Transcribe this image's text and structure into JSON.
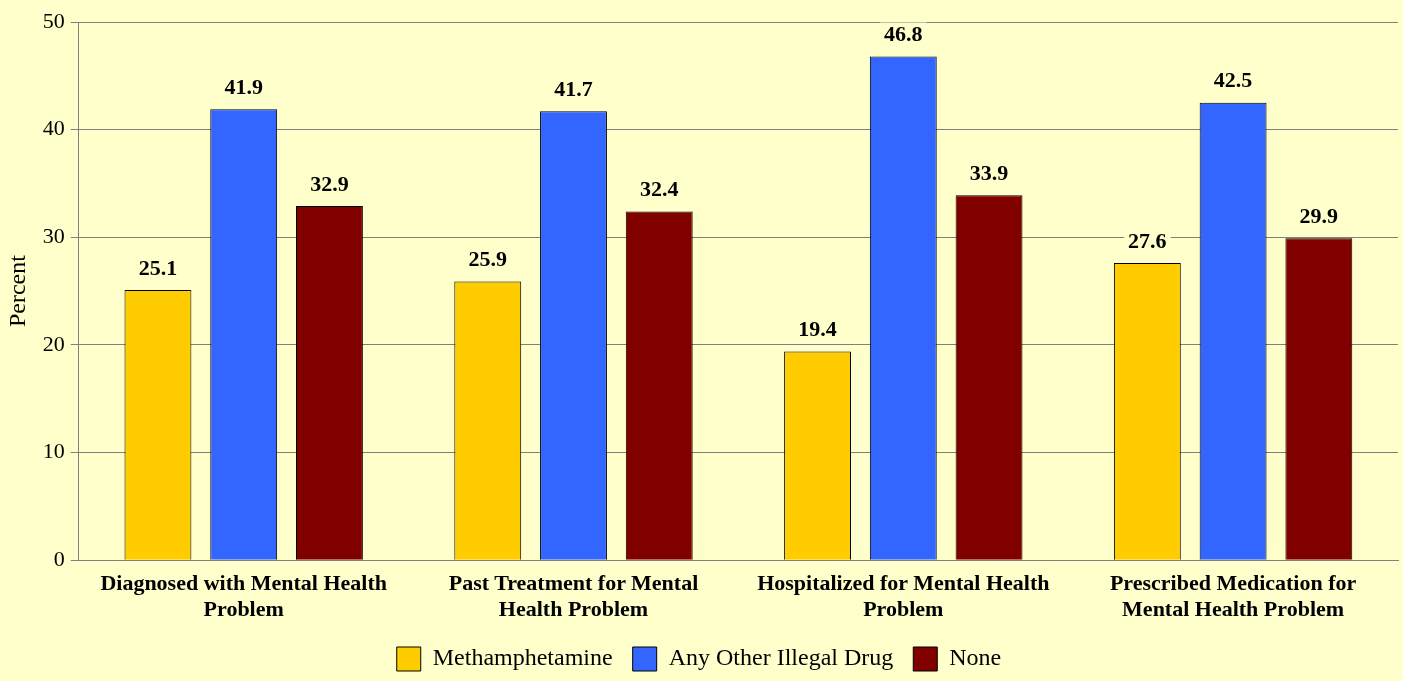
{
  "chart_data": {
    "type": "bar",
    "ylabel": "Percent",
    "categories": [
      "Diagnosed with Mental Health Problem",
      "Past Treatment for Mental Health Problem",
      "Hospitalized for Mental Health Problem",
      "Prescribed Medication for Mental Health Problem"
    ],
    "series": [
      {
        "name": "Methamphetamine",
        "color": "#ffcc00",
        "values": [
          25.1,
          25.9,
          19.4,
          27.6
        ]
      },
      {
        "name": "Any Other Illegal Drug",
        "color": "#3366ff",
        "values": [
          41.9,
          41.7,
          46.8,
          42.5
        ]
      },
      {
        "name": "None",
        "color": "#800000",
        "values": [
          32.9,
          32.4,
          33.9,
          29.9
        ]
      }
    ],
    "ylim": [
      0,
      50
    ],
    "yticks": [
      0,
      10,
      20,
      30,
      40,
      50
    ],
    "grid": "y",
    "legend": "bottom",
    "data_labels": true
  }
}
